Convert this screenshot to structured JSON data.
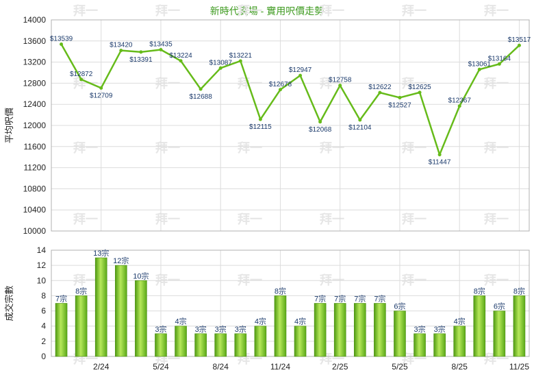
{
  "chart_data": [
    {
      "type": "line",
      "title": "新時代廣場 - 實用呎價走勢",
      "ylabel": "平均呎價",
      "ylim": [
        10000,
        14000
      ],
      "yticks": [
        10000,
        10400,
        10800,
        11200,
        11600,
        12000,
        12400,
        12800,
        13200,
        13600,
        14000
      ],
      "color": "#66bb1a",
      "grid": true,
      "values": [
        13539,
        12872,
        12709,
        13420,
        13391,
        13435,
        13224,
        12688,
        13087,
        13221,
        12115,
        12678,
        12947,
        12068,
        12758,
        12104,
        12622,
        12527,
        12625,
        11447,
        12367,
        13061,
        13164,
        13517
      ]
    },
    {
      "type": "bar",
      "ylabel": "成交宗數",
      "ylim": [
        0,
        14
      ],
      "yticks": [
        0,
        2,
        4,
        6,
        8,
        10,
        12,
        14
      ],
      "x_ticks": [
        "2/24",
        "5/24",
        "8/24",
        "11/24",
        "2/25",
        "5/25",
        "8/25",
        "11/25"
      ],
      "color": "#66bb1a",
      "grid": true,
      "unit_suffix": "宗",
      "values": [
        7,
        8,
        13,
        12,
        10,
        3,
        4,
        3,
        3,
        3,
        4,
        8,
        4,
        7,
        7,
        7,
        7,
        6,
        3,
        3,
        4,
        8,
        6,
        8
      ]
    }
  ],
  "watermark": "拜一"
}
